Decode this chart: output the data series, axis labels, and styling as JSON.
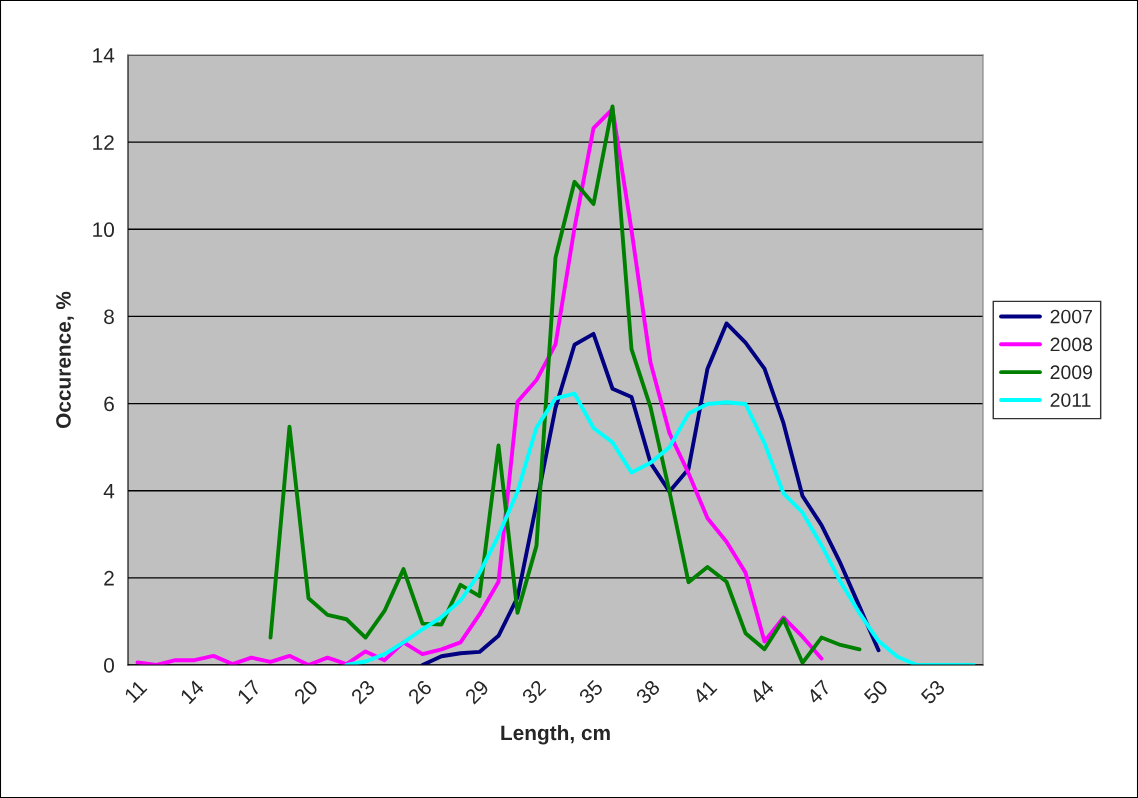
{
  "chart_data": {
    "type": "line",
    "xlabel": "Length, cm",
    "ylabel": "Occurence, %",
    "xlim": [
      10.5,
      55.5
    ],
    "xticks": [
      11,
      14,
      17,
      20,
      23,
      26,
      29,
      32,
      35,
      38,
      41,
      44,
      47,
      50,
      53
    ],
    "ylim": [
      0,
      14
    ],
    "yticks": [
      0,
      2,
      4,
      6,
      8,
      10,
      12,
      14
    ],
    "grid": "y",
    "legend": "right",
    "marker": "none",
    "line_style": "solid",
    "series": [
      {
        "name": "2007",
        "color": "#000080",
        "x": [
          26,
          27,
          28,
          29,
          30,
          31,
          32,
          33,
          34,
          35,
          36,
          37,
          38,
          39,
          40,
          41,
          42,
          43,
          44,
          45,
          46,
          47,
          48,
          49,
          50
        ],
        "values": [
          0.0,
          0.2,
          0.27,
          0.3,
          0.67,
          1.55,
          3.7,
          5.9,
          7.35,
          7.6,
          6.34,
          6.15,
          4.64,
          3.98,
          4.5,
          6.8,
          7.84,
          7.4,
          6.8,
          5.55,
          3.88,
          3.21,
          2.33,
          1.34,
          0.34
        ]
      },
      {
        "name": "2008",
        "color": "#ff00ff",
        "x": [
          11,
          12,
          13,
          14,
          15,
          16,
          17,
          18,
          19,
          20,
          21,
          22,
          23,
          24,
          25,
          26,
          27,
          28,
          29,
          30,
          31,
          32,
          33,
          34,
          35,
          36,
          37,
          38,
          39,
          40,
          41,
          42,
          43,
          44,
          45,
          46,
          47
        ],
        "values": [
          0.06,
          0.0,
          0.11,
          0.11,
          0.21,
          0.02,
          0.17,
          0.07,
          0.21,
          0.0,
          0.17,
          0.02,
          0.31,
          0.11,
          0.52,
          0.25,
          0.36,
          0.52,
          1.16,
          1.91,
          6.04,
          6.54,
          7.36,
          10.03,
          12.32,
          12.76,
          9.98,
          6.94,
          5.32,
          4.4,
          3.37,
          2.83,
          2.12,
          0.54,
          1.09,
          0.65,
          0.15
        ]
      },
      {
        "name": "2009",
        "color": "#008000",
        "x": [
          18,
          19,
          20,
          21,
          22,
          23,
          24,
          25,
          26,
          27,
          28,
          29,
          30,
          31,
          32,
          33,
          34,
          35,
          36,
          37,
          38,
          39,
          40,
          41,
          42,
          43,
          44,
          45,
          46,
          47,
          48,
          49
        ],
        "values": [
          0.63,
          5.47,
          1.53,
          1.15,
          1.05,
          0.63,
          1.24,
          2.2,
          0.95,
          0.93,
          1.84,
          1.58,
          5.04,
          1.2,
          2.74,
          9.35,
          11.09,
          10.58,
          12.82,
          7.25,
          5.92,
          3.98,
          1.9,
          2.25,
          1.91,
          0.73,
          0.36,
          1.05,
          0.05,
          0.63,
          0.46,
          0.36
        ]
      },
      {
        "name": "2011",
        "color": "#00ffff",
        "x": [
          22,
          23,
          24,
          25,
          26,
          27,
          28,
          29,
          30,
          31,
          32,
          33,
          34,
          35,
          36,
          37,
          38,
          39,
          40,
          41,
          42,
          43,
          44,
          45,
          46,
          47,
          48,
          49,
          50,
          51,
          52,
          53,
          54,
          55
        ],
        "values": [
          0.0,
          0.08,
          0.25,
          0.52,
          0.82,
          1.1,
          1.48,
          2.11,
          2.97,
          3.98,
          5.45,
          6.12,
          6.23,
          5.44,
          5.11,
          4.42,
          4.64,
          5.0,
          5.77,
          5.99,
          6.03,
          5.99,
          5.09,
          3.94,
          3.5,
          2.75,
          1.91,
          1.19,
          0.55,
          0.19,
          0.0,
          0.0,
          0.0,
          0.0
        ]
      }
    ]
  }
}
